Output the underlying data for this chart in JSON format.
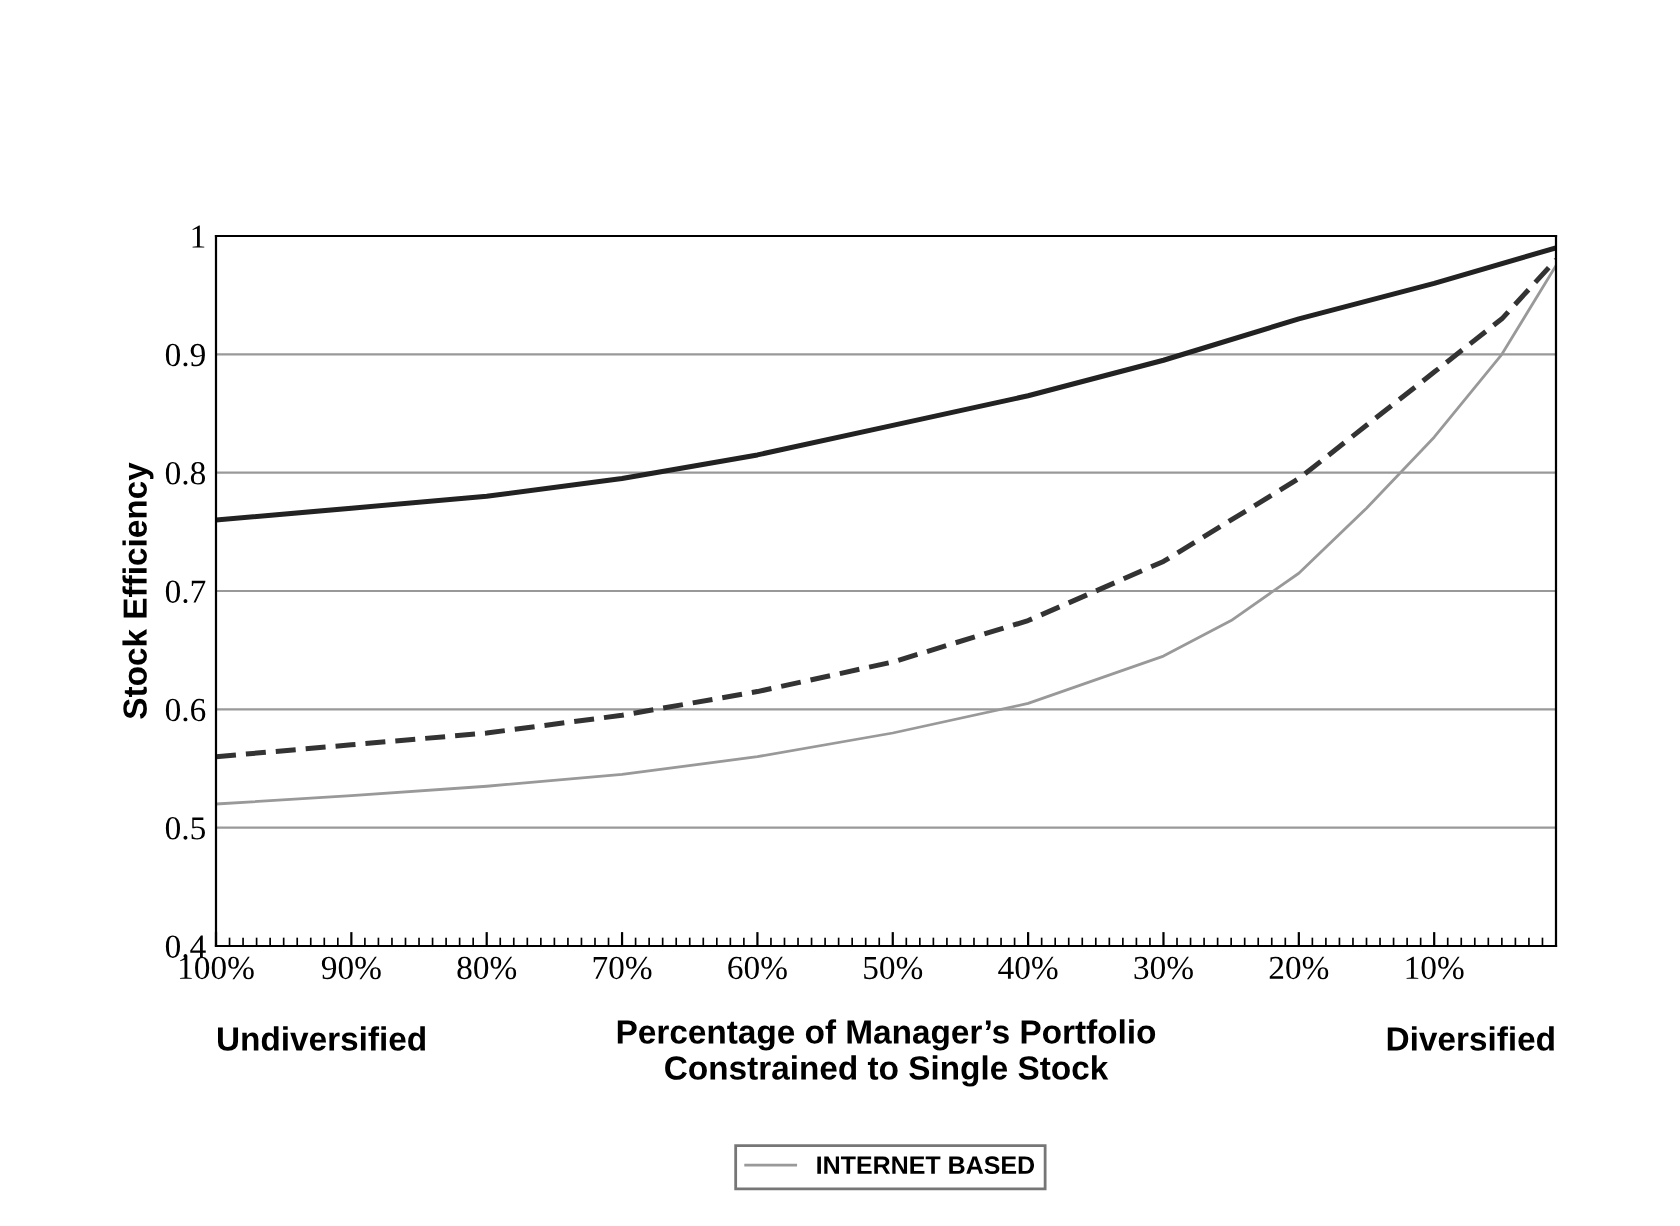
{
  "chart_data": {
    "type": "line",
    "ylabel": "Stock Efficiency",
    "xlabel": "Percentage of Manager’s Portfolio\nConstrained to Single Stock",
    "annotations": [
      "Undiversified",
      "Diversified"
    ],
    "xlim": [
      100,
      1
    ],
    "xticks": [
      {
        "value": 100,
        "label": "100%"
      },
      {
        "value": 90,
        "label": "90%"
      },
      {
        "value": 80,
        "label": "80%"
      },
      {
        "value": 70,
        "label": "70%"
      },
      {
        "value": 60,
        "label": "60%"
      },
      {
        "value": 50,
        "label": "50%"
      },
      {
        "value": 40,
        "label": "40%"
      },
      {
        "value": 30,
        "label": "30%"
      },
      {
        "value": 20,
        "label": "20%"
      },
      {
        "value": 10,
        "label": "10%"
      }
    ],
    "ylim": [
      0.4,
      1
    ],
    "yticks": [
      0.4,
      0.5,
      0.6,
      0.7,
      0.8,
      0.9,
      1
    ],
    "grid": "y",
    "legend": "bottom",
    "marker": "none",
    "series": [
      {
        "color": "#222222",
        "line_style": "solid",
        "x": [
          100,
          90,
          80,
          70,
          60,
          50,
          40,
          30,
          20,
          10,
          1
        ],
        "values": [
          0.76,
          0.77,
          0.78,
          0.795,
          0.815,
          0.84,
          0.865,
          0.895,
          0.93,
          0.96,
          0.99
        ]
      },
      {
        "color": "#333333",
        "line_style": "dashed",
        "x": [
          100,
          90,
          80,
          70,
          60,
          50,
          40,
          30,
          20,
          15,
          10,
          5,
          1
        ],
        "values": [
          0.56,
          0.57,
          0.58,
          0.595,
          0.615,
          0.64,
          0.675,
          0.725,
          0.795,
          0.84,
          0.885,
          0.93,
          0.98
        ]
      },
      {
        "name": "INTERNET BASED",
        "color": "#999999",
        "line_style": "solid",
        "x": [
          100,
          90,
          80,
          70,
          60,
          50,
          40,
          30,
          25,
          20,
          15,
          10,
          5,
          1
        ],
        "values": [
          0.52,
          0.527,
          0.535,
          0.545,
          0.56,
          0.58,
          0.605,
          0.645,
          0.675,
          0.715,
          0.77,
          0.83,
          0.9,
          0.975
        ]
      }
    ]
  }
}
